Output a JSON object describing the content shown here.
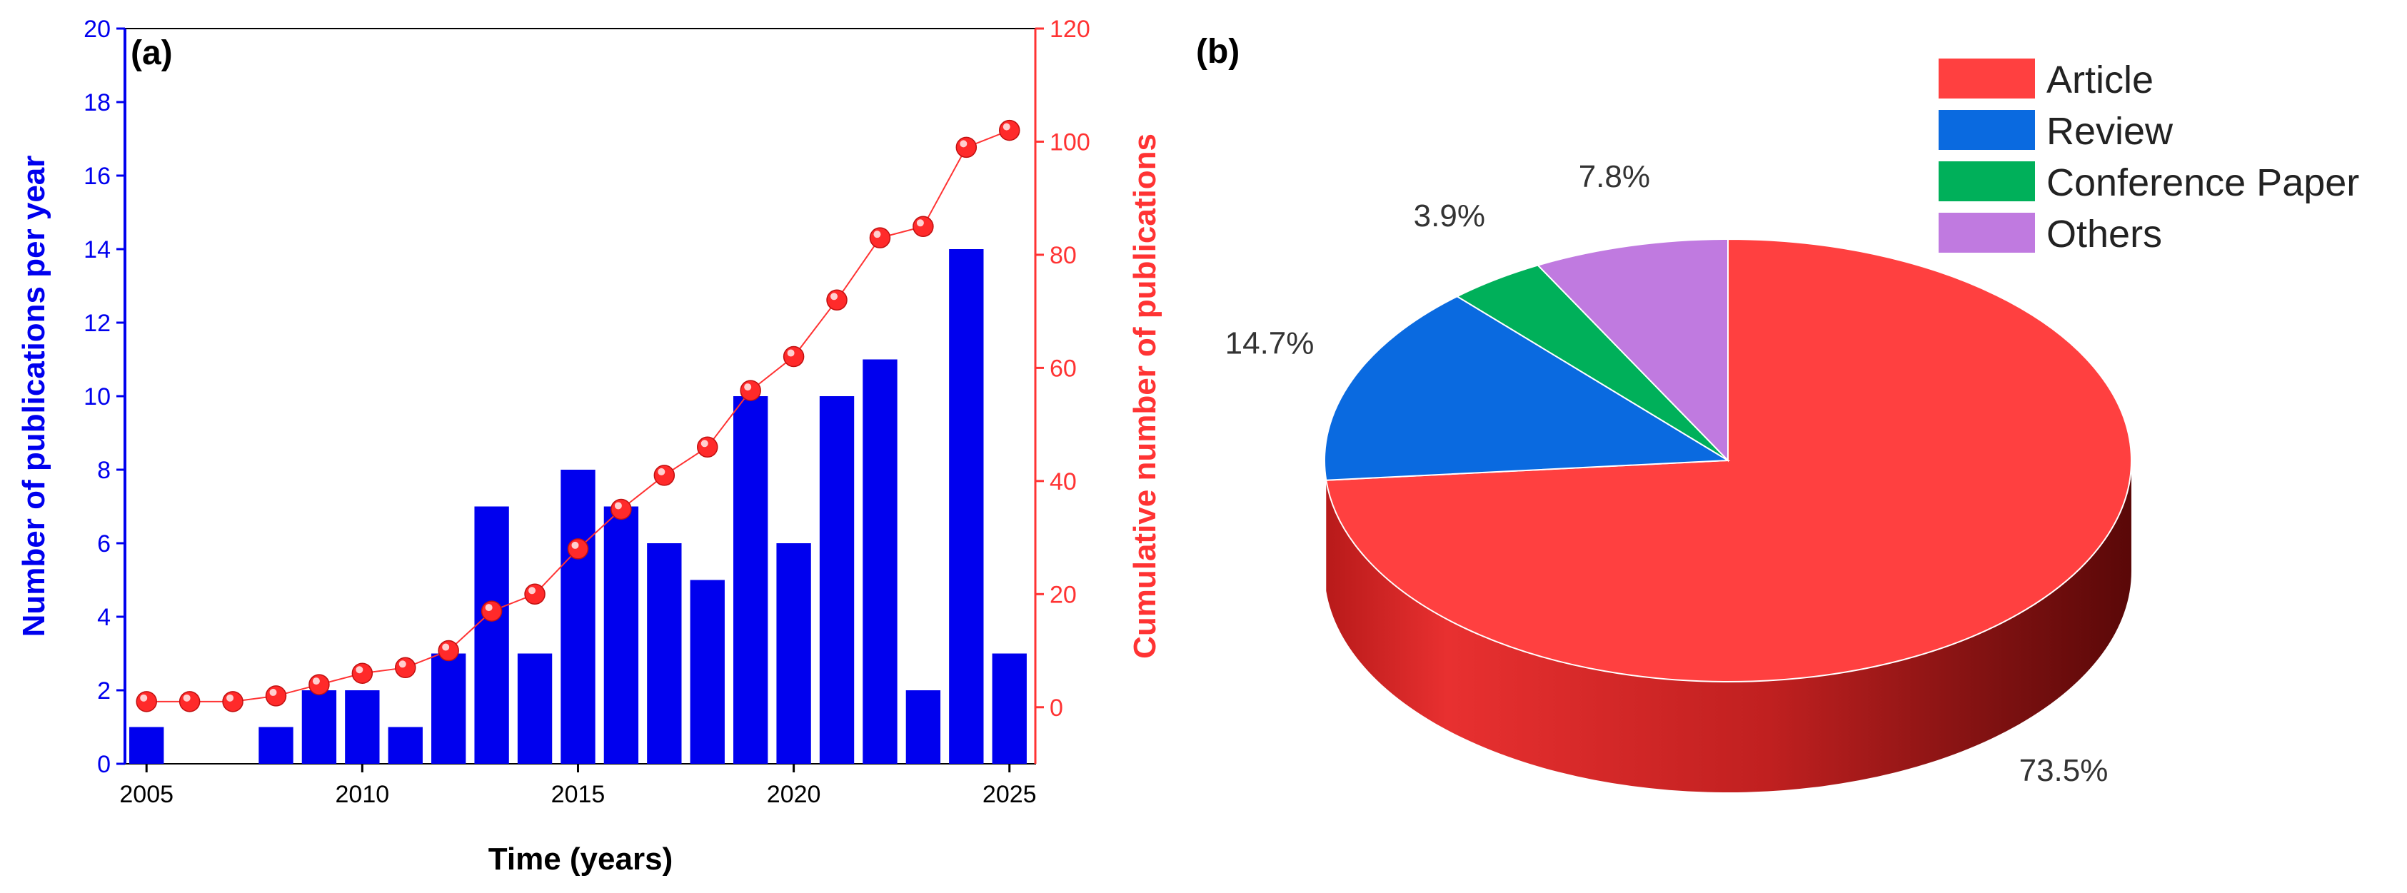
{
  "chart_data": [
    {
      "panel_label": "(a)",
      "type": "bar+line",
      "xlabel": "Time (years)",
      "ylabel_left": "Number of publications per year",
      "ylabel_right": "Cumulative number of publications",
      "x_ticks": [
        2005,
        2010,
        2015,
        2020,
        2025
      ],
      "xlim": [
        2004.5,
        2025.6
      ],
      "ylim_left": [
        0,
        20
      ],
      "yticks_left": [
        0,
        2,
        4,
        6,
        8,
        10,
        12,
        14,
        16,
        18,
        20
      ],
      "ylim_right": [
        -10,
        120
      ],
      "yticks_right": [
        0,
        20,
        40,
        60,
        80,
        100,
        120
      ],
      "colors": {
        "bars": "#0000ee",
        "line": "#ff3333",
        "marker": "#ff2a2a"
      },
      "bars": {
        "name": "Number of publications per year",
        "x": [
          2005,
          2006,
          2007,
          2008,
          2009,
          2010,
          2011,
          2012,
          2013,
          2014,
          2015,
          2016,
          2017,
          2018,
          2019,
          2020,
          2021,
          2022,
          2023,
          2024,
          2025
        ],
        "values": [
          1,
          0,
          0,
          1,
          2,
          2,
          1,
          3,
          7,
          3,
          8,
          7,
          6,
          5,
          10,
          6,
          10,
          11,
          2,
          14,
          3
        ]
      },
      "line": {
        "name": "Cumulative number of publications",
        "x": [
          2005,
          2006,
          2007,
          2008,
          2009,
          2010,
          2011,
          2012,
          2013,
          2014,
          2015,
          2016,
          2017,
          2018,
          2019,
          2020,
          2021,
          2022,
          2023,
          2024,
          2025
        ],
        "values": [
          1,
          1,
          1,
          2,
          4,
          6,
          7,
          10,
          17,
          20,
          28,
          35,
          41,
          46,
          56,
          62,
          72,
          83,
          85,
          99,
          102
        ]
      }
    },
    {
      "panel_label": "(b)",
      "type": "pie",
      "slices": [
        {
          "label": "Article",
          "value": 73.5,
          "display": "73.5%",
          "color": "#ff4040"
        },
        {
          "label": "Review",
          "value": 14.7,
          "display": "14.7%",
          "color": "#0a6ae0"
        },
        {
          "label": "Conference Paper",
          "value": 3.9,
          "display": "3.9%",
          "color": "#00b05a"
        },
        {
          "label": "Others",
          "value": 7.8,
          "display": "7.8%",
          "color": "#c07ae0"
        }
      ]
    }
  ]
}
